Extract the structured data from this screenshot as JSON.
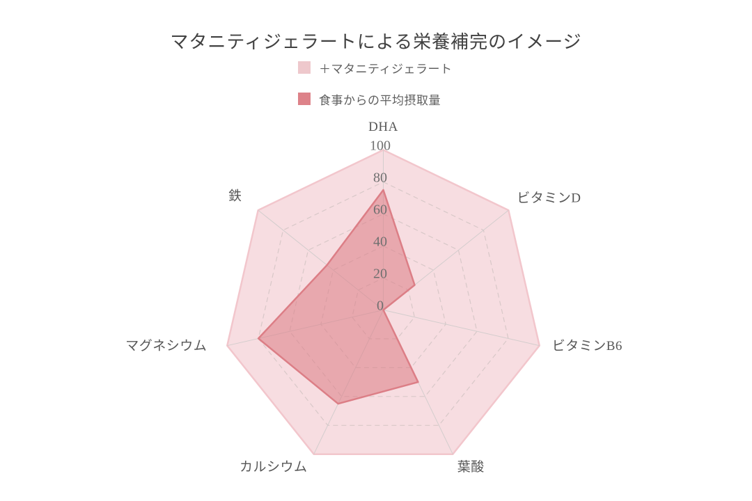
{
  "page": {
    "background_color": "#ffffff"
  },
  "title": {
    "text": "マタニティジェラートによる栄養補完のイメージ",
    "color": "#414141"
  },
  "legend": {
    "position": "top-center",
    "items": [
      {
        "label": "＋マタニティジェラート",
        "swatch_color": "#eec8cc"
      },
      {
        "label": "食事からの平均摂取量",
        "swatch_color": "#dd8289"
      }
    ]
  },
  "chart_data": {
    "type": "radar",
    "title": "マタニティジェラートによる栄養補完のイメージ",
    "categories": [
      "DHA",
      "ビタミンD",
      "ビタミンB6",
      "葉酸",
      "カルシウム",
      "マグネシウム",
      "鉄"
    ],
    "series": [
      {
        "name": "＋マタニティジェラート",
        "values": [
          100,
          100,
          100,
          100,
          100,
          100,
          100
        ],
        "fill": "#f7dde1",
        "stroke": "#f2c6cc"
      },
      {
        "name": "食事からの平均摂取量",
        "values": [
          75,
          25,
          0,
          50,
          65,
          80,
          45
        ],
        "fill": "rgba(221,124,133,0.55)",
        "stroke": "#dc7e86"
      }
    ],
    "ticks": [
      0,
      20,
      40,
      60,
      80,
      100
    ],
    "tick_axis": "DHA",
    "rlim": [
      0,
      100
    ],
    "grid": "dashed-rings",
    "start_angle_deg": 90,
    "direction": "clockwise",
    "legend_position": "top"
  },
  "colors": {
    "grid_dashed": "#d8c8c8",
    "axis_line": "#d3cdcd",
    "tick_label": "#6f6f6f",
    "axis_label": "#575757"
  }
}
